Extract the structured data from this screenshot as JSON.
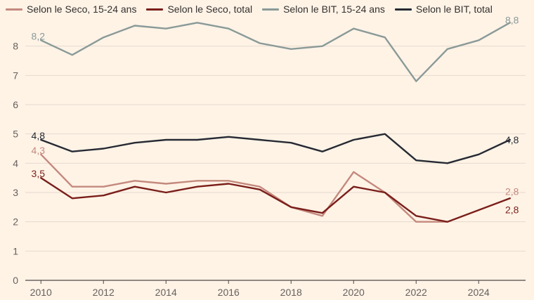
{
  "chart_data": {
    "type": "line",
    "title": "",
    "xlabel": "",
    "ylabel": "",
    "ylim": [
      0,
      9
    ],
    "xlim": [
      2009.5,
      2025.5
    ],
    "grid": true,
    "legend_position": "top",
    "y_ticks": [
      "0",
      "1",
      "2",
      "3",
      "4",
      "5",
      "6",
      "7",
      "8"
    ],
    "x_ticks": [
      "2010",
      "2012",
      "2014",
      "2016",
      "2018",
      "2020",
      "2022",
      "2024"
    ],
    "x": [
      2010,
      2011,
      2012,
      2013,
      2014,
      2015,
      2016,
      2017,
      2018,
      2019,
      2020,
      2021,
      2022,
      2023,
      2024,
      2025
    ],
    "series": [
      {
        "name": "Selon le Seco, 15-24 ans",
        "color": "#c4897e",
        "values": [
          4.3,
          3.2,
          3.2,
          3.4,
          3.3,
          3.4,
          3.4,
          3.2,
          2.5,
          2.2,
          3.7,
          3.0,
          2.0,
          2.0,
          null,
          null
        ],
        "start_label": "4,3",
        "end_label": "2,8",
        "end_label_value": 2.8
      },
      {
        "name": "Selon le Seco, total",
        "color": "#7a1e1a",
        "values": [
          3.5,
          2.8,
          2.9,
          3.2,
          3.0,
          3.2,
          3.3,
          3.1,
          2.5,
          2.3,
          3.2,
          3.0,
          2.2,
          2.0,
          2.4,
          2.8
        ],
        "start_label": "3,5",
        "end_label": "2,8",
        "end_label_value": 2.8
      },
      {
        "name": "Selon le BIT, 15-24 ans",
        "color": "#8a9a98",
        "values": [
          8.2,
          7.7,
          8.3,
          8.7,
          8.6,
          8.8,
          8.6,
          8.1,
          7.9,
          8.0,
          8.6,
          8.3,
          6.8,
          7.9,
          8.2,
          8.8
        ],
        "start_label": "8,2",
        "end_label": "8,8",
        "end_label_value": 8.8
      },
      {
        "name": "Selon le BIT, total",
        "color": "#262a33",
        "values": [
          4.8,
          4.4,
          4.5,
          4.7,
          4.8,
          4.8,
          4.9,
          4.8,
          4.7,
          4.4,
          4.8,
          5.0,
          4.1,
          4.0,
          4.3,
          4.8
        ],
        "start_label": "4,8",
        "end_label": "4,8",
        "end_label_value": 4.8
      }
    ]
  },
  "colors": {
    "background": "#fff3e6",
    "grid": "#e6dace",
    "axis": "#4d4845",
    "tick_text": "#66605c"
  }
}
